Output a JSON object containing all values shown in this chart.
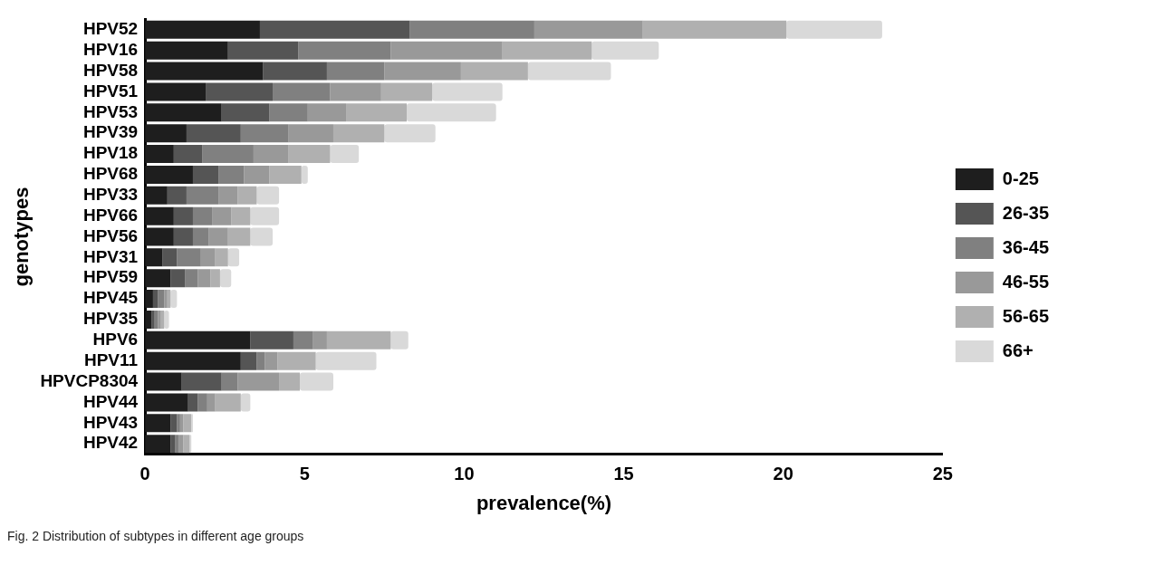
{
  "chart_data": {
    "type": "bar",
    "orientation": "horizontal",
    "stacked": true,
    "xlabel": "prevalence(%)",
    "ylabel": "genotypes",
    "categories": [
      "HPV52",
      "HPV16",
      "HPV58",
      "HPV51",
      "HPV53",
      "HPV39",
      "HPV18",
      "HPV68",
      "HPV33",
      "HPV66",
      "HPV56",
      "HPV31",
      "HPV59",
      "HPV45",
      "HPV35",
      "HPV6",
      "HPV11",
      "HPVCP8304",
      "HPV44",
      "HPV43",
      "HPV42"
    ],
    "series": [
      {
        "name": "0-25",
        "color": "#1e1e1e",
        "values": [
          3.6,
          2.6,
          3.7,
          1.9,
          2.4,
          1.3,
          0.9,
          1.5,
          0.7,
          0.9,
          0.9,
          0.55,
          0.8,
          0.25,
          0.2,
          3.3,
          3.0,
          1.15,
          1.35,
          0.8,
          0.8
        ]
      },
      {
        "name": "26-35",
        "color": "#555555",
        "values": [
          4.7,
          2.2,
          2.0,
          2.1,
          1.5,
          1.7,
          0.9,
          0.8,
          0.6,
          0.6,
          0.6,
          0.45,
          0.45,
          0.15,
          0.1,
          1.35,
          0.5,
          1.25,
          0.3,
          0.2,
          0.15
        ]
      },
      {
        "name": "36-45",
        "color": "#808080",
        "values": [
          3.9,
          2.9,
          1.8,
          1.8,
          1.2,
          1.5,
          1.6,
          0.8,
          1.0,
          0.6,
          0.5,
          0.75,
          0.4,
          0.2,
          0.1,
          0.6,
          0.25,
          0.5,
          0.3,
          0.1,
          0.1
        ]
      },
      {
        "name": "46-55",
        "color": "#999999",
        "values": [
          3.4,
          3.5,
          2.4,
          1.6,
          1.2,
          1.4,
          1.1,
          0.8,
          0.6,
          0.6,
          0.6,
          0.45,
          0.4,
          0.1,
          0.1,
          0.45,
          0.4,
          1.3,
          0.25,
          0.1,
          0.15
        ]
      },
      {
        "name": "56-65",
        "color": "#b0b0b0",
        "values": [
          4.5,
          2.8,
          2.1,
          1.6,
          1.9,
          1.6,
          1.3,
          1.0,
          0.6,
          0.6,
          0.7,
          0.4,
          0.3,
          0.1,
          0.1,
          2.0,
          1.2,
          0.65,
          0.8,
          0.25,
          0.2
        ]
      },
      {
        "name": "66+",
        "color": "#d9d9d9",
        "values": [
          3.0,
          2.1,
          2.6,
          2.2,
          2.8,
          1.6,
          0.9,
          0.2,
          0.7,
          0.9,
          0.7,
          0.35,
          0.35,
          0.2,
          0.15,
          0.55,
          1.9,
          1.05,
          0.3,
          0.05,
          0.05
        ]
      }
    ],
    "xlim": [
      0,
      25
    ],
    "xticks": [
      0,
      5,
      10,
      15,
      20,
      25
    ],
    "grid": false,
    "legend": "right",
    "annotations": [
      "Fig. 2 Distribution of subtypes in different age groups"
    ]
  }
}
